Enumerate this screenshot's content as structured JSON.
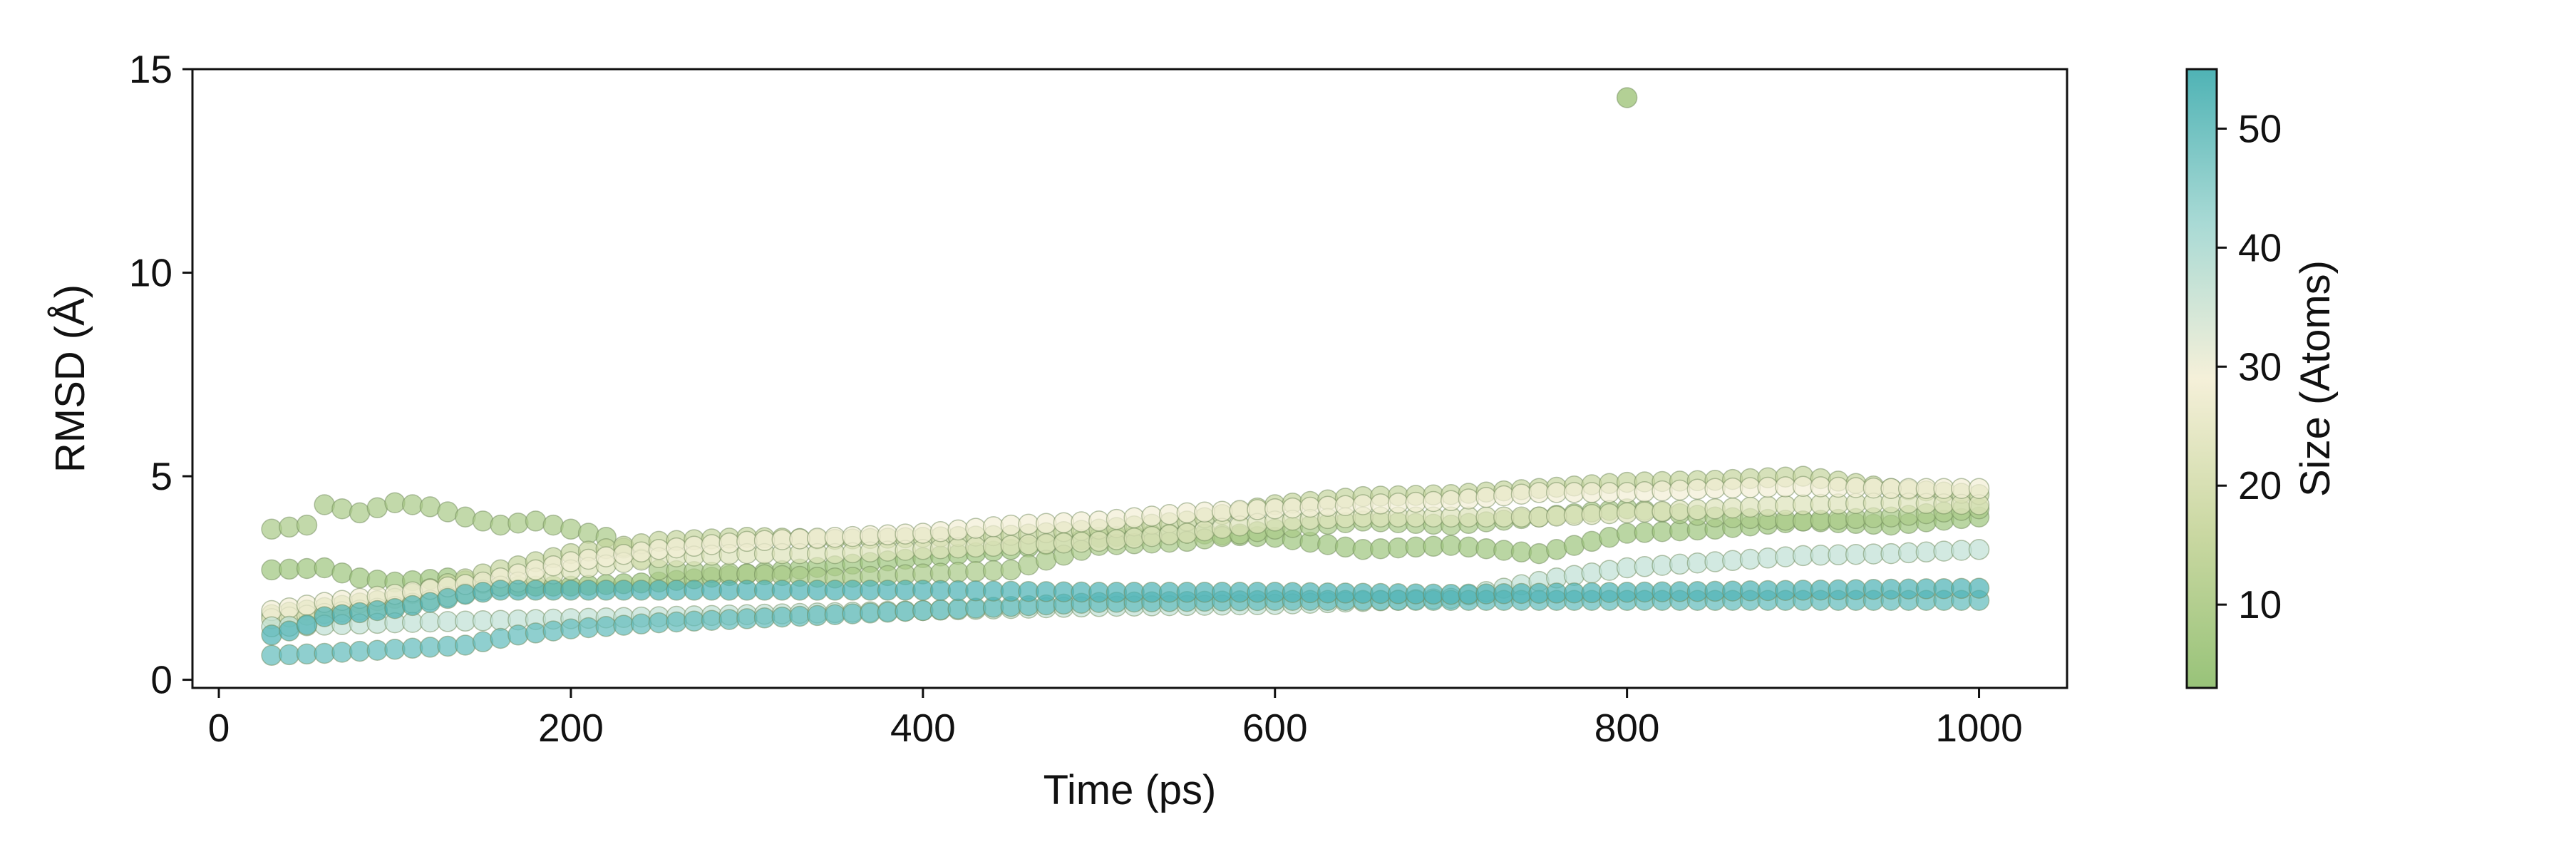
{
  "chart_data": {
    "type": "scatter",
    "title": "",
    "xlabel": "Time (ps)",
    "ylabel": "RMSD (Å)",
    "xlim": [
      -15,
      1050
    ],
    "ylim": [
      -0.2,
      15
    ],
    "xticks": [
      0,
      200,
      400,
      600,
      800,
      1000
    ],
    "yticks": [
      0,
      5,
      10,
      15
    ],
    "grid": false,
    "legend": "none",
    "marker": {
      "shape": "circle",
      "opacity": 0.72,
      "edge_color": "#6f8a5a"
    },
    "colorbar": {
      "label": "Size (Atoms)",
      "range": [
        3,
        55
      ],
      "ticks": [
        10,
        20,
        30,
        40,
        50
      ],
      "colors": [
        "#98c379",
        "#cad8a2",
        "#f5f0d9",
        "#a9dad5",
        "#4fb3b5"
      ]
    },
    "series": [
      {
        "size": 55,
        "x": [
          30,
          1000
        ],
        "y": [
          1.1,
          2.25
        ],
        "points": [
          [
            30,
            1.1
          ],
          [
            40,
            1.2
          ],
          [
            50,
            1.35
          ],
          [
            60,
            1.55
          ],
          [
            80,
            1.65
          ],
          [
            100,
            1.75
          ],
          [
            120,
            1.9
          ],
          [
            140,
            2.1
          ],
          [
            160,
            2.2
          ],
          [
            200,
            2.2
          ],
          [
            300,
            2.2
          ],
          [
            400,
            2.2
          ],
          [
            500,
            2.15
          ],
          [
            600,
            2.15
          ],
          [
            700,
            2.1
          ],
          [
            800,
            2.15
          ],
          [
            900,
            2.2
          ],
          [
            1000,
            2.25
          ]
        ]
      },
      {
        "size": 52,
        "x": [
          30,
          1000
        ],
        "y": [
          0.6,
          1.95
        ],
        "points": [
          [
            30,
            0.6
          ],
          [
            60,
            0.65
          ],
          [
            100,
            0.75
          ],
          [
            140,
            0.85
          ],
          [
            170,
            1.1
          ],
          [
            200,
            1.25
          ],
          [
            250,
            1.4
          ],
          [
            300,
            1.5
          ],
          [
            350,
            1.6
          ],
          [
            400,
            1.7
          ],
          [
            450,
            1.8
          ],
          [
            500,
            1.9
          ],
          [
            600,
            1.95
          ],
          [
            700,
            1.95
          ],
          [
            800,
            1.95
          ],
          [
            900,
            1.95
          ],
          [
            1000,
            1.95
          ]
        ]
      },
      {
        "size": 38,
        "x": [
          30,
          1000
        ],
        "y": [
          1.3,
          3.2
        ],
        "points": [
          [
            30,
            1.3
          ],
          [
            100,
            1.4
          ],
          [
            200,
            1.5
          ],
          [
            300,
            1.6
          ],
          [
            400,
            1.7
          ],
          [
            500,
            1.8
          ],
          [
            600,
            1.85
          ],
          [
            700,
            2.0
          ],
          [
            760,
            2.5
          ],
          [
            800,
            2.75
          ],
          [
            850,
            2.9
          ],
          [
            900,
            3.05
          ],
          [
            950,
            3.1
          ],
          [
            1000,
            3.2
          ]
        ]
      },
      {
        "size": 28,
        "x": [
          30,
          1000
        ],
        "y": [
          1.7,
          4.7
        ],
        "points": [
          [
            30,
            1.7
          ],
          [
            60,
            1.9
          ],
          [
            100,
            2.1
          ],
          [
            150,
            2.4
          ],
          [
            200,
            2.9
          ],
          [
            250,
            3.2
          ],
          [
            300,
            3.4
          ],
          [
            350,
            3.5
          ],
          [
            400,
            3.6
          ],
          [
            450,
            3.8
          ],
          [
            500,
            3.9
          ],
          [
            550,
            4.1
          ],
          [
            600,
            4.2
          ],
          [
            650,
            4.3
          ],
          [
            700,
            4.4
          ],
          [
            750,
            4.6
          ],
          [
            800,
            4.6
          ],
          [
            850,
            4.7
          ],
          [
            900,
            4.75
          ],
          [
            950,
            4.7
          ],
          [
            1000,
            4.7
          ]
        ]
      },
      {
        "size": 22,
        "x": [
          30,
          1000
        ],
        "y": [
          1.5,
          4.3
        ],
        "points": [
          [
            30,
            1.5
          ],
          [
            100,
            1.8
          ],
          [
            150,
            2.2
          ],
          [
            200,
            2.7
          ],
          [
            250,
            3.0
          ],
          [
            300,
            3.1
          ],
          [
            350,
            3.1
          ],
          [
            400,
            3.2
          ],
          [
            450,
            3.3
          ],
          [
            500,
            3.4
          ],
          [
            550,
            3.6
          ],
          [
            600,
            3.9
          ],
          [
            650,
            4.0
          ],
          [
            700,
            4.0
          ],
          [
            750,
            4.0
          ],
          [
            800,
            4.1
          ],
          [
            850,
            4.2
          ],
          [
            900,
            4.3
          ],
          [
            950,
            4.35
          ],
          [
            1000,
            4.3
          ]
        ]
      },
      {
        "size": 15,
        "x": [
          30,
          1000
        ],
        "y": [
          1.6,
          4.55
        ],
        "points": [
          [
            30,
            1.6
          ],
          [
            100,
            2.0
          ],
          [
            150,
            2.6
          ],
          [
            200,
            3.1
          ],
          [
            250,
            3.4
          ],
          [
            300,
            3.5
          ],
          [
            350,
            3.45
          ],
          [
            400,
            3.5
          ],
          [
            450,
            3.55
          ],
          [
            500,
            3.7
          ],
          [
            550,
            3.9
          ],
          [
            600,
            4.3
          ],
          [
            650,
            4.5
          ],
          [
            700,
            4.55
          ],
          [
            750,
            4.7
          ],
          [
            800,
            4.85
          ],
          [
            850,
            4.9
          ],
          [
            900,
            5.0
          ],
          [
            950,
            4.7
          ],
          [
            1000,
            4.55
          ]
        ]
      },
      {
        "size": 8,
        "x": [
          30,
          1000
        ],
        "y": [
          3.7,
          4.2
        ],
        "points": [
          [
            30,
            3.7
          ],
          [
            50,
            3.8
          ],
          [
            60,
            4.3
          ],
          [
            80,
            4.1
          ],
          [
            100,
            4.35
          ],
          [
            120,
            4.25
          ],
          [
            140,
            4.0
          ],
          [
            160,
            3.8
          ],
          [
            180,
            3.9
          ],
          [
            200,
            3.7
          ],
          [
            220,
            3.5
          ],
          [
            250,
            2.7
          ],
          [
            300,
            2.6
          ],
          [
            350,
            2.5
          ],
          [
            400,
            2.6
          ],
          [
            450,
            2.7
          ],
          [
            500,
            3.3
          ],
          [
            550,
            3.4
          ],
          [
            600,
            3.7
          ],
          [
            650,
            3.9
          ],
          [
            700,
            3.8
          ],
          [
            750,
            4.0
          ],
          [
            800,
            4.2
          ],
          [
            850,
            4.0
          ],
          [
            900,
            3.9
          ],
          [
            950,
            4.0
          ],
          [
            1000,
            4.2
          ]
        ]
      },
      {
        "size": 5,
        "x": [
          30,
          1000
        ],
        "y": [
          2.7,
          4.0
        ],
        "points": [
          [
            30,
            2.7
          ],
          [
            60,
            2.75
          ],
          [
            80,
            2.5
          ],
          [
            100,
            2.4
          ],
          [
            130,
            2.5
          ],
          [
            160,
            2.3
          ],
          [
            200,
            2.3
          ],
          [
            250,
            2.4
          ],
          [
            300,
            2.6
          ],
          [
            350,
            2.8
          ],
          [
            400,
            3.0
          ],
          [
            450,
            3.2
          ],
          [
            500,
            3.5
          ],
          [
            550,
            3.6
          ],
          [
            600,
            3.5
          ],
          [
            650,
            3.2
          ],
          [
            700,
            3.3
          ],
          [
            750,
            3.1
          ],
          [
            800,
            3.6
          ],
          [
            850,
            3.7
          ],
          [
            900,
            3.9
          ],
          [
            950,
            3.8
          ],
          [
            1000,
            4.0
          ]
        ]
      }
    ],
    "outliers": [
      {
        "x": 800,
        "y": 14.3,
        "size": 8
      }
    ]
  }
}
